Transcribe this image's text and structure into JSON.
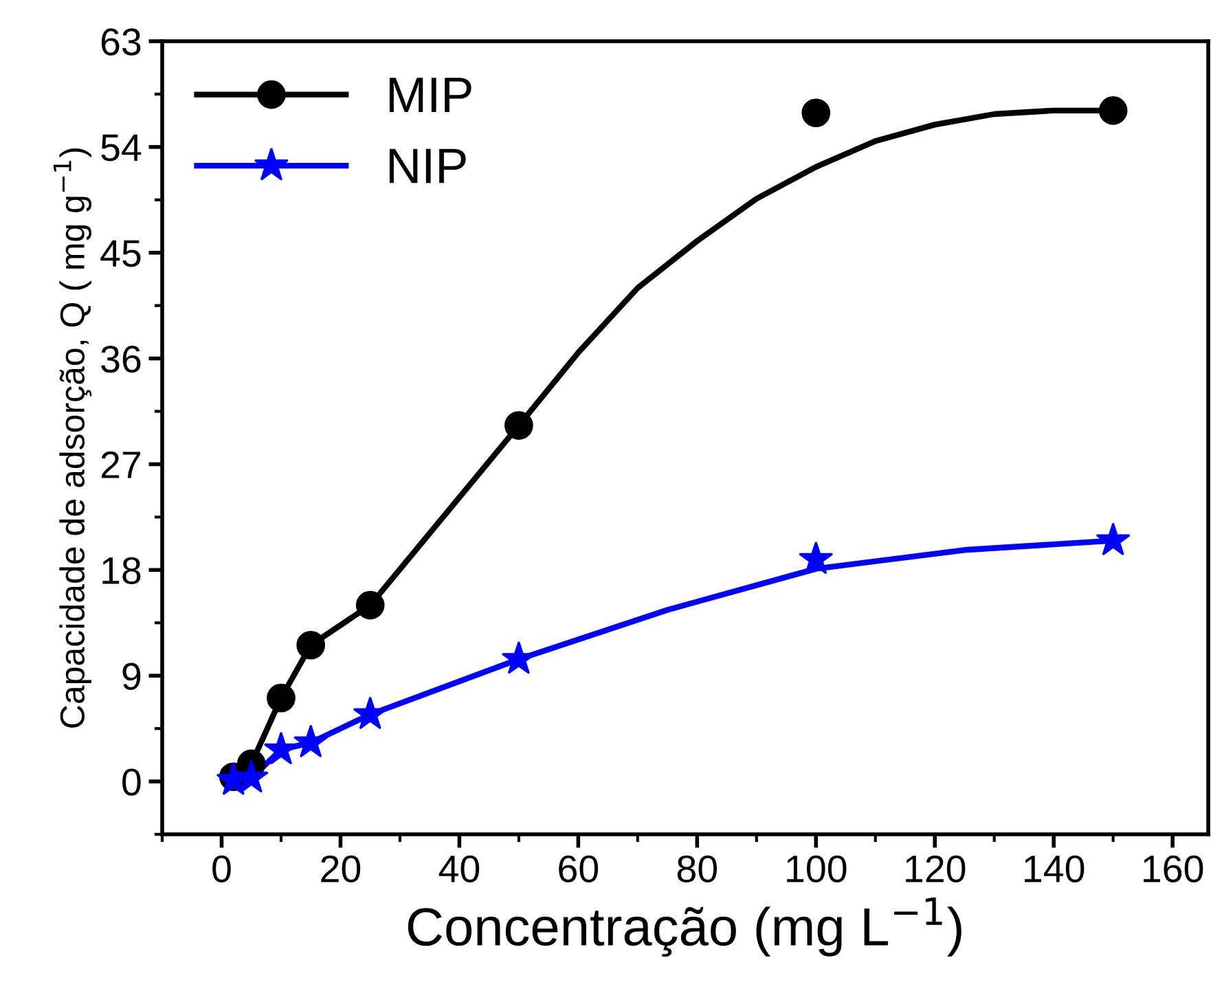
{
  "chart_data": {
    "type": "line",
    "xlabel": "Concentração (mg L$^{−1}$)",
    "ylabel": "Capacidade de adsorção, Q ( mg g$^{−1}$)",
    "xlim": [
      -10,
      166
    ],
    "ylim": [
      -4.5,
      63
    ],
    "xticks": [
      0,
      20,
      40,
      60,
      80,
      100,
      120,
      140,
      160
    ],
    "yticks": [
      0,
      9,
      18,
      27,
      36,
      45,
      54,
      63
    ],
    "grid": false,
    "legend": "top left",
    "series": [
      {
        "name": "MIP",
        "type": "scatter",
        "marker": "circle",
        "color": "#000000",
        "x": [
          2,
          5,
          10,
          15,
          25,
          50,
          100,
          150
        ],
        "values": [
          0.4,
          1.5,
          7.1,
          11.6,
          15.0,
          30.3,
          56.9,
          57.1
        ]
      },
      {
        "name": "NIP",
        "type": "scatter",
        "marker": "star",
        "color": "#0000ff",
        "x": [
          2,
          5,
          10,
          15,
          25,
          50,
          100,
          150
        ],
        "values": [
          0.1,
          0.3,
          2.7,
          3.3,
          5.7,
          10.4,
          18.9,
          20.5
        ]
      },
      {
        "color": "#000000",
        "line_style": "solid",
        "x": [
          2,
          5,
          10,
          15,
          25,
          50,
          60,
          70,
          80,
          90,
          100,
          110,
          120,
          130,
          140,
          150
        ],
        "values": [
          0.4,
          1.5,
          7.1,
          11.6,
          15.0,
          30.3,
          36.5,
          42,
          46,
          49.6,
          52.3,
          54.5,
          55.9,
          56.8,
          57.1,
          57.1
        ]
      },
      {
        "color": "#0000ff",
        "line_style": "solid",
        "x": [
          2,
          5,
          10,
          15,
          25,
          50,
          75,
          100,
          125,
          150
        ],
        "values": [
          0.1,
          0.3,
          2.7,
          3.3,
          5.7,
          10.4,
          14.6,
          18.1,
          19.7,
          20.5
        ]
      }
    ]
  }
}
